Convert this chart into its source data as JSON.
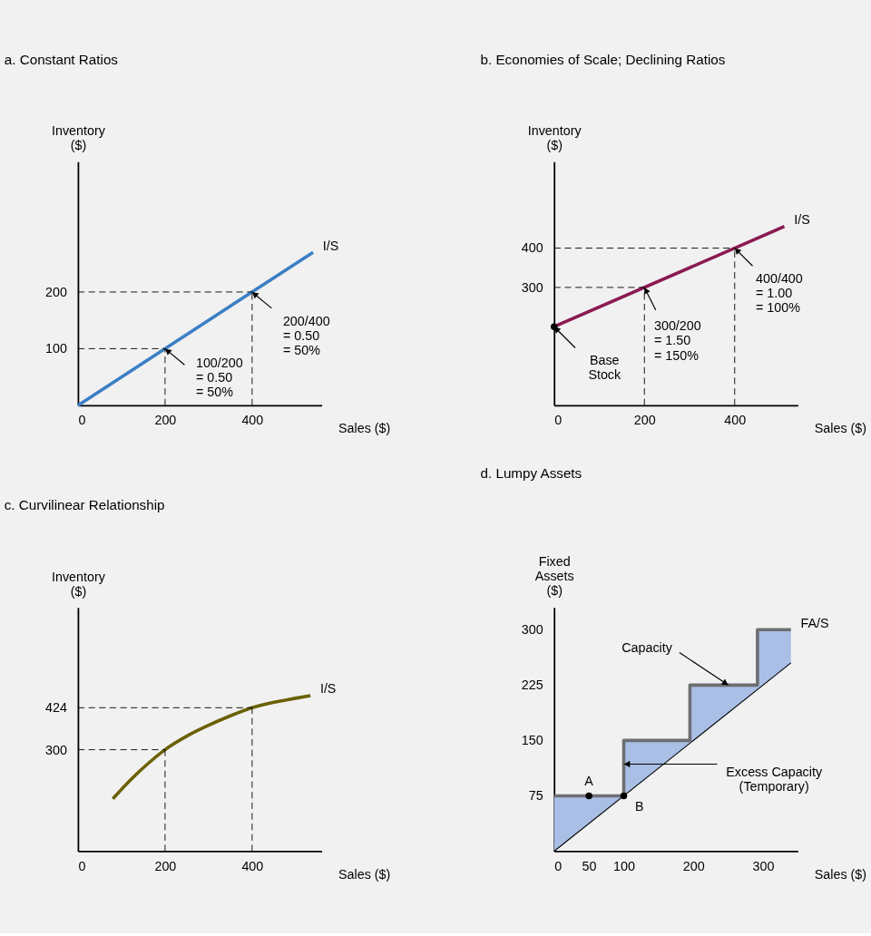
{
  "chart_data": [
    {
      "type": "line",
      "title": "a. Constant Ratios",
      "xlabel": "Sales ($)",
      "ylabel": "Inventory\n($)",
      "xlim": [
        0,
        560
      ],
      "ylim": [
        0,
        430
      ],
      "xticks": [
        0,
        200,
        400
      ],
      "yticks": [
        100,
        200
      ],
      "grid": false,
      "x": [
        0,
        540
      ],
      "series": [
        {
          "name": "I/S",
          "color": "#3b7fc4",
          "values": [
            0,
            270
          ]
        }
      ],
      "ref_lines": [
        {
          "axis": "x",
          "value": 200,
          "line_style": "dashed"
        },
        {
          "axis": "y",
          "value": 100,
          "line_style": "dashed"
        },
        {
          "axis": "x",
          "value": 400,
          "line_style": "dashed"
        },
        {
          "axis": "y",
          "value": 200,
          "line_style": "dashed"
        }
      ],
      "annotations": [
        {
          "text": "100/200\n= 0.50\n= 50%",
          "x": 200,
          "y": 100
        },
        {
          "text": "200/400\n= 0.50\n= 50%",
          "x": 400,
          "y": 200
        }
      ]
    },
    {
      "type": "line",
      "title": "b. Economies of Scale; Declining Ratios",
      "xlabel": "Sales ($)",
      "ylabel": "Inventory\n($)",
      "xlim": [
        0,
        540
      ],
      "ylim": [
        0,
        620
      ],
      "xticks": [
        0,
        200,
        400
      ],
      "yticks": [
        300,
        400
      ],
      "grid": false,
      "x": [
        0,
        510
      ],
      "series": [
        {
          "name": "I/S",
          "color": "#8b1a52",
          "values": [
            200,
            455
          ]
        },
        {
          "type": "scatter",
          "marker": "circle",
          "color": "#000000",
          "x": [
            0
          ],
          "values": [
            200
          ]
        }
      ],
      "ref_lines": [
        {
          "axis": "x",
          "value": 200,
          "line_style": "dashed"
        },
        {
          "axis": "y",
          "value": 300,
          "line_style": "dashed"
        },
        {
          "axis": "x",
          "value": 400,
          "line_style": "dashed"
        },
        {
          "axis": "y",
          "value": 400,
          "line_style": "dashed"
        }
      ],
      "annotations": [
        {
          "text": "300/200\n= 1.50\n= 150%",
          "x": 200,
          "y": 300
        },
        {
          "text": "400/400\n= 1.00\n= 100%",
          "x": 400,
          "y": 400
        },
        {
          "text": "Base\nStock",
          "x": 0,
          "y": 200
        }
      ]
    },
    {
      "type": "line",
      "title": "c. Curvilinear Relationship",
      "xlabel": "Sales ($)",
      "ylabel": "Inventory\n($)",
      "xlim": [
        0,
        560
      ],
      "ylim": [
        0,
        720
      ],
      "xticks": [
        0,
        200,
        400
      ],
      "yticks": [
        300,
        424
      ],
      "grid": false,
      "x": [
        80,
        120,
        160,
        200,
        250,
        300,
        350,
        400,
        450,
        500,
        534
      ],
      "series": [
        {
          "name": "I/S",
          "color": "#6b6100",
          "values": [
            155,
            210,
            258,
            300,
            340,
            372,
            400,
            424,
            440,
            452,
            460
          ]
        }
      ],
      "ref_lines": [
        {
          "axis": "x",
          "value": 200,
          "line_style": "dashed"
        },
        {
          "axis": "y",
          "value": 300,
          "line_style": "dashed"
        },
        {
          "axis": "x",
          "value": 400,
          "line_style": "dashed"
        },
        {
          "axis": "y",
          "value": 424,
          "line_style": "dashed"
        }
      ]
    },
    {
      "type": "line",
      "title": "d. Lumpy Assets",
      "xlabel": "Sales ($)",
      "ylabel": "Fixed\nAssets\n($)",
      "xlim": [
        0,
        350
      ],
      "ylim": [
        0,
        330
      ],
      "xticks": [
        0,
        50,
        100,
        200,
        300
      ],
      "yticks": [
        75,
        150,
        225,
        300
      ],
      "grid": false,
      "series": [
        {
          "type": "line",
          "color": "#000000",
          "x": [
            0,
            340
          ],
          "values": [
            0,
            255
          ]
        },
        {
          "type": "step",
          "name": "FA/S",
          "color": "#6d6e71",
          "x": [
            0,
            100,
            195,
            292,
            340
          ],
          "values": [
            75,
            150,
            225,
            300,
            300
          ],
          "lower": [
            0,
            75,
            146.25,
            219,
            255
          ],
          "upper": [
            75,
            150,
            225,
            300,
            300
          ]
        },
        {
          "type": "scatter",
          "marker": "circle",
          "color": "#000000",
          "x": [
            50,
            100
          ],
          "values": [
            75,
            75
          ]
        }
      ],
      "annotations": [
        {
          "text": "A",
          "x": 50,
          "y": 75
        },
        {
          "text": "B",
          "x": 100,
          "y": 75
        },
        {
          "text": "Capacity",
          "x": 250,
          "y": 225
        },
        {
          "text": "Excess Capacity\n(Temporary)",
          "x": 100,
          "y": 118
        }
      ]
    }
  ]
}
